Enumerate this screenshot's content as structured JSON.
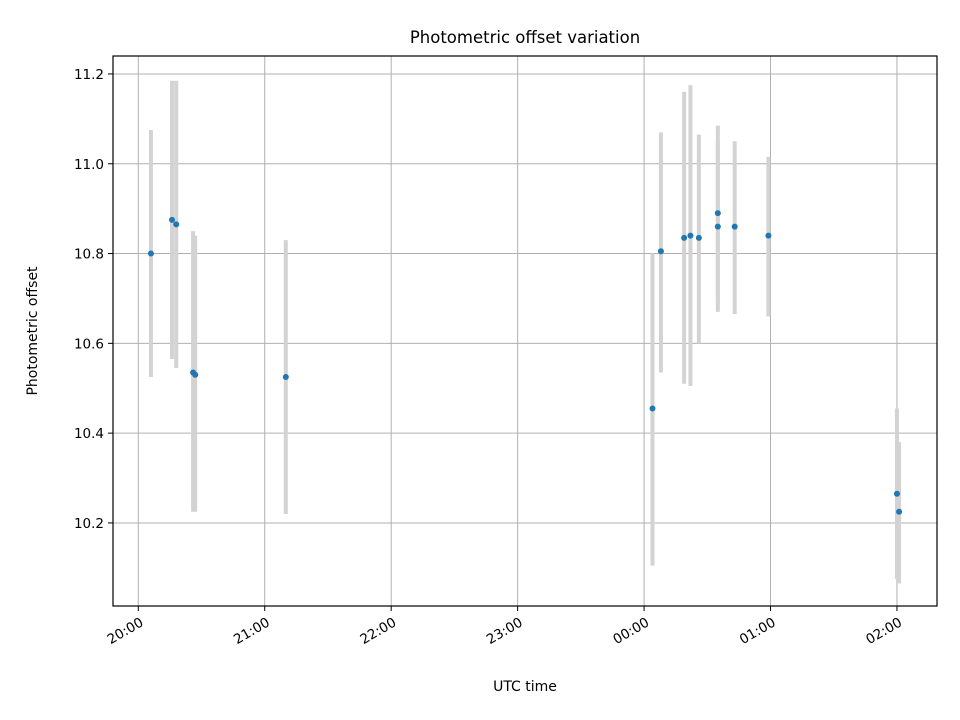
{
  "chart_data": {
    "type": "scatter",
    "title": "Photometric offset variation",
    "xlabel": "UTC time",
    "ylabel": "Photometric offset",
    "x_ticks": [
      "20:00",
      "21:00",
      "22:00",
      "23:00",
      "00:00",
      "01:00",
      "02:00"
    ],
    "y_ticks": [
      "10.2",
      "10.4",
      "10.6",
      "10.8",
      "11.0",
      "11.2"
    ],
    "y_tick_values": [
      10.2,
      10.4,
      10.6,
      10.8,
      11.0,
      11.2
    ],
    "xlim": [
      "19:48",
      "02:19"
    ],
    "ylim": [
      10.015,
      11.24
    ],
    "grid": true,
    "point_color": "#1f77b4",
    "errorbar_color": "#d3d3d3",
    "series": [
      {
        "points": [
          {
            "x": "20:06",
            "y": 10.8,
            "ylow": 10.525,
            "yhigh": 11.075
          },
          {
            "x": "20:16",
            "y": 10.875,
            "ylow": 10.565,
            "yhigh": 11.185
          },
          {
            "x": "20:18",
            "y": 10.865,
            "ylow": 10.545,
            "yhigh": 11.185
          },
          {
            "x": "20:26",
            "y": 10.535,
            "ylow": 10.225,
            "yhigh": 10.85
          },
          {
            "x": "20:27",
            "y": 10.53,
            "ylow": 10.225,
            "yhigh": 10.84
          },
          {
            "x": "21:10",
            "y": 10.525,
            "ylow": 10.22,
            "yhigh": 10.83
          },
          {
            "x": "00:04",
            "y": 10.455,
            "ylow": 10.105,
            "yhigh": 10.8
          },
          {
            "x": "00:08",
            "y": 10.805,
            "ylow": 10.535,
            "yhigh": 11.07
          },
          {
            "x": "00:19",
            "y": 10.835,
            "ylow": 10.51,
            "yhigh": 11.16
          },
          {
            "x": "00:22",
            "y": 10.84,
            "ylow": 10.505,
            "yhigh": 11.175
          },
          {
            "x": "00:26",
            "y": 10.835,
            "ylow": 10.6,
            "yhigh": 11.065
          },
          {
            "x": "00:35",
            "y": 10.86,
            "ylow": 10.67,
            "yhigh": 11.05
          },
          {
            "x": "00:35",
            "y": 10.89,
            "ylow": 10.69,
            "yhigh": 11.085
          },
          {
            "x": "00:43",
            "y": 10.86,
            "ylow": 10.665,
            "yhigh": 11.05
          },
          {
            "x": "00:59",
            "y": 10.84,
            "ylow": 10.66,
            "yhigh": 11.015
          },
          {
            "x": "02:00",
            "y": 10.265,
            "ylow": 10.075,
            "yhigh": 10.455
          },
          {
            "x": "02:01",
            "y": 10.225,
            "ylow": 10.065,
            "yhigh": 10.38
          }
        ]
      }
    ]
  }
}
